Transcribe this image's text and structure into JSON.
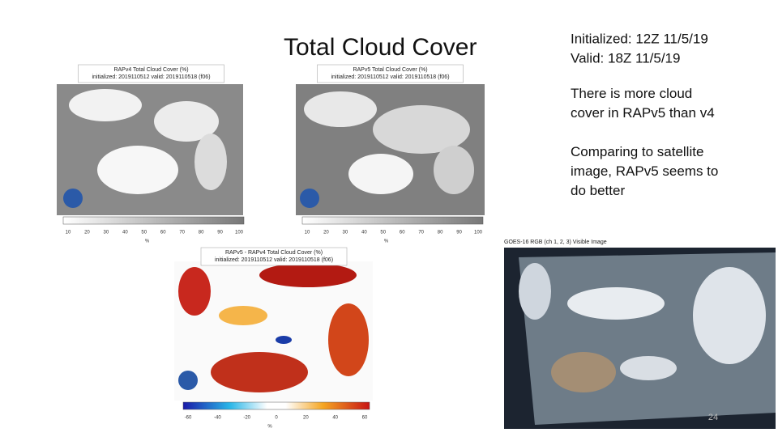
{
  "slide": {
    "title": "Total Cloud Cover",
    "info": [
      "Initialized: 12Z 11/5/19",
      "Valid: 18Z 11/5/19"
    ],
    "notes": [
      "There is more cloud cover in RAPv5 than v4",
      "Comparing to satellite image, RAPv5 seems to do better"
    ],
    "page_number": "24",
    "panels": [
      {
        "title": "RAPv4 Total Cloud Cover (%)",
        "subtitle": "initialized: 2019110512 valid: 2019110518 (f06)",
        "ticks": [
          "10",
          "20",
          "30",
          "40",
          "50",
          "60",
          "70",
          "80",
          "90",
          "100"
        ],
        "unit": "%"
      },
      {
        "title": "RAPv5 Total Cloud Cover (%)",
        "subtitle": "initialized: 2019110512 valid: 2019110518 (f06)",
        "ticks": [
          "10",
          "20",
          "30",
          "40",
          "50",
          "60",
          "70",
          "80",
          "90",
          "100"
        ],
        "unit": "%"
      },
      {
        "title": "RAPv5 - RAPv4 Total Cloud Cover (%)",
        "subtitle": "initialized: 2019110512 valid: 2019110518 (f06)",
        "ticks": [
          "-60",
          "-40",
          "-20",
          "0",
          "20",
          "40",
          "60"
        ],
        "unit": "%"
      }
    ],
    "satellite_title": "GOES-16 RGB (ch 1, 2, 3) Visible Image"
  }
}
